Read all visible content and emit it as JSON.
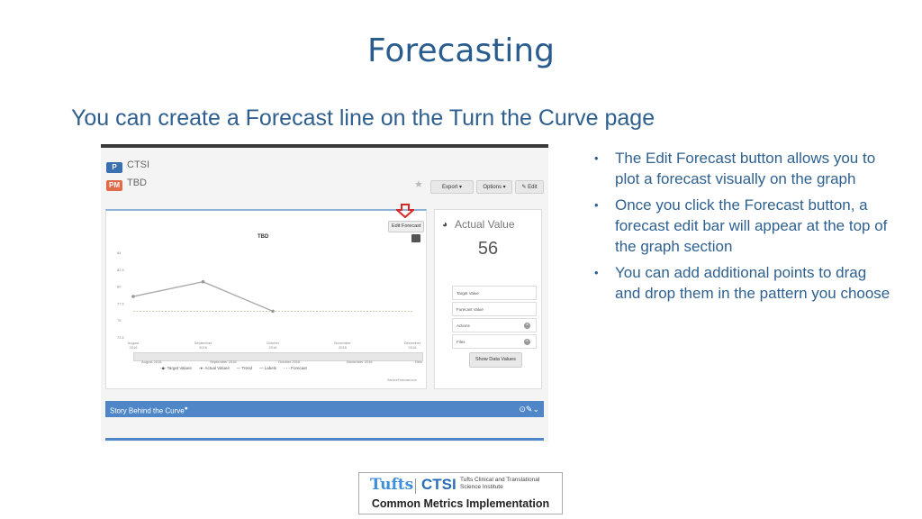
{
  "slide": {
    "title": "Forecasting",
    "subtitle": "You can create a Forecast line on the Turn the Curve page"
  },
  "screenshot": {
    "badges": [
      {
        "code": "P",
        "label": "CTSI",
        "color": "#3a6fb0"
      },
      {
        "code": "PM",
        "label": "TBD",
        "color": "#e06a4a"
      }
    ],
    "toolbar": {
      "export_label": "Export ▾",
      "options_label": "Options ▾",
      "edit_label": "✎ Edit"
    },
    "edit_forecast_label": "Edit Forecast",
    "chart_data": {
      "type": "line",
      "title": "TBD",
      "x_ticks": [
        "August 2016",
        "September 2016",
        "October 2016",
        "November 2016",
        "December 2016"
      ],
      "y_ticks": [
        "84",
        "82.5",
        "80",
        "77.5",
        "75",
        "72.5"
      ],
      "series": [
        {
          "values": [
            78,
            80,
            76
          ]
        },
        {
          "values": [
            76,
            76,
            76,
            76,
            76
          ]
        }
      ],
      "slider_labels": [
        "August 2016",
        "September 2016",
        "October 2016",
        "November 2016",
        "December 2016"
      ],
      "legend": [
        "Target Values",
        "Actual Values",
        "Trend",
        "Labels",
        "Forecast"
      ],
      "footer": "ServiceForecast.com"
    },
    "actual_value": {
      "title": "Actual Value",
      "value": "56"
    },
    "fields": [
      {
        "label": "Target Value"
      },
      {
        "label": "Forecast Value"
      },
      {
        "label": "Actions"
      },
      {
        "label": "Files"
      }
    ],
    "show_data_values_label": "Show Data Values",
    "story_label": "Story Behind the Curve",
    "story_icons": "⊙✎⌄"
  },
  "bullets": [
    "The Edit Forecast button allows you to plot a forecast visually on the graph",
    "Once you click the Forecast button, a forecast edit bar will appear at the top of the graph section",
    "You can add additional points to drag and drop them in the pattern you choose"
  ],
  "logo": {
    "tufts": "Tufts",
    "ctsi": "CTSI",
    "institute": "Tufts Clinical and Translational Science Institute",
    "program": "Common Metrics Implementation"
  },
  "colors": {
    "title": "#2a5d8f",
    "bullet_text": "#2f6190",
    "story_bar": "#4e86c8"
  }
}
